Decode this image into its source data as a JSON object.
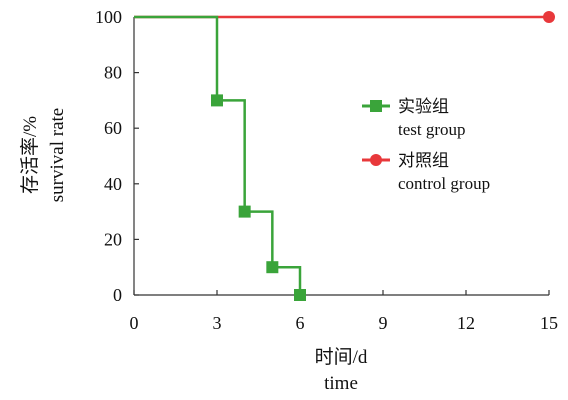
{
  "chart_data": {
    "type": "line",
    "step": true,
    "xticks": [
      "0",
      "3",
      "6",
      "9",
      "12",
      "15"
    ],
    "yticks": [
      "0",
      "20",
      "40",
      "60",
      "80",
      "100"
    ],
    "xlim": [
      0,
      15
    ],
    "ylim": [
      0,
      100
    ],
    "xlabel_zh": "时间/d",
    "xlabel_en": "time",
    "ylabel_zh": "存活率/%",
    "ylabel_en": "survival rate",
    "grid": false,
    "legend_position": "right",
    "series": [
      {
        "name_zh": "实验组",
        "name_en": "test group",
        "color": "#3aa43a",
        "marker": "square",
        "x": [
          0,
          3,
          4,
          5,
          6
        ],
        "y": [
          100,
          70,
          30,
          10,
          0
        ],
        "marker_x": [
          3,
          4,
          5,
          6
        ],
        "marker_y": [
          70,
          30,
          10,
          0
        ]
      },
      {
        "name_zh": "对照组",
        "name_en": "control group",
        "color": "#e8383b",
        "marker": "circle",
        "x": [
          0,
          15
        ],
        "y": [
          100,
          100
        ],
        "marker_x": [
          15
        ],
        "marker_y": [
          100
        ]
      }
    ]
  }
}
